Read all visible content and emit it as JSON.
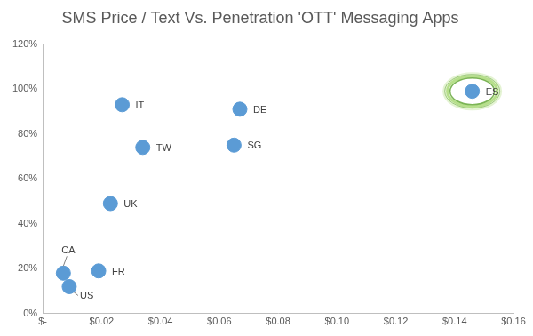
{
  "chart_data": {
    "type": "scatter",
    "title": "SMS Price / Text Vs. Penetration 'OTT' Messaging Apps",
    "labels": [
      "IT",
      "DE",
      "TW",
      "SG",
      "ES",
      "UK",
      "CA",
      "FR",
      "US"
    ],
    "x": [
      0.027,
      0.067,
      0.034,
      0.065,
      0.146,
      0.023,
      0.007,
      0.019,
      0.009
    ],
    "values": [
      93,
      91,
      74,
      75,
      99,
      49,
      18,
      19,
      12
    ],
    "color": "#5b9bd5",
    "xlim": [
      0,
      0.16
    ],
    "xticks": [
      {
        "value": 0,
        "label": "$-"
      },
      {
        "value": 0.02,
        "label": "$0.02"
      },
      {
        "value": 0.04,
        "label": "$0.04"
      },
      {
        "value": 0.06,
        "label": "$0.06"
      },
      {
        "value": 0.08,
        "label": "$0.08"
      },
      {
        "value": 0.1,
        "label": "$0.10"
      },
      {
        "value": 0.12,
        "label": "$0.12"
      },
      {
        "value": 0.14,
        "label": "$0.14"
      },
      {
        "value": 0.16,
        "label": "$0.16"
      }
    ],
    "ylim": [
      0,
      120
    ],
    "yticks": [
      {
        "value": 0,
        "label": "0%"
      },
      {
        "value": 20,
        "label": "20%"
      },
      {
        "value": 40,
        "label": "40%"
      },
      {
        "value": 60,
        "label": "60%"
      },
      {
        "value": 80,
        "label": "80%"
      },
      {
        "value": 100,
        "label": "100%"
      },
      {
        "value": 120,
        "label": "120%"
      }
    ],
    "grid": false
  }
}
